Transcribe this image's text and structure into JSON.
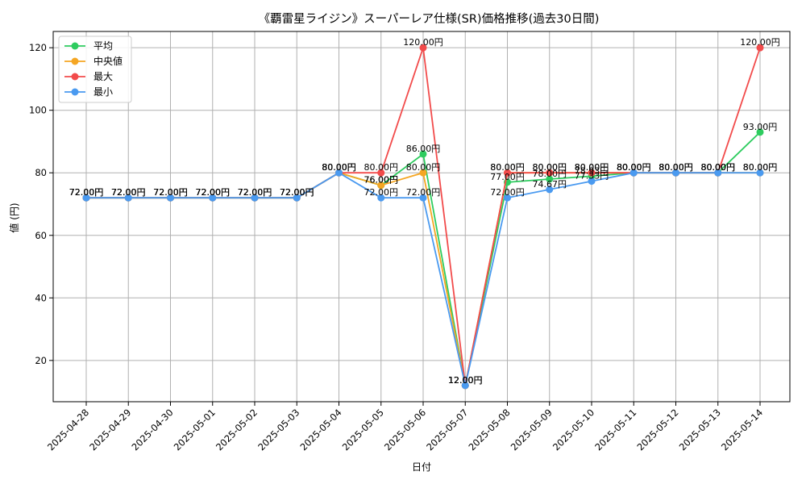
{
  "chart_data": {
    "type": "line",
    "title": "《覇雷星ライジン》スーパーレア仕様(SR)価格推移(過去30日間)",
    "xlabel": "日付",
    "ylabel": "値 (円)",
    "ylim": [
      6.8,
      125.2
    ],
    "yticks": [
      20,
      40,
      60,
      80,
      100,
      120
    ],
    "grid": true,
    "legend_position": "top-left",
    "categories": [
      "2025-04-28",
      "2025-04-29",
      "2025-04-30",
      "2025-05-01",
      "2025-05-02",
      "2025-05-03",
      "2025-05-04",
      "2025-05-05",
      "2025-05-06",
      "2025-05-07",
      "2025-05-08",
      "2025-05-09",
      "2025-05-10",
      "2025-05-11",
      "2025-05-12",
      "2025-05-13",
      "2025-05-14"
    ],
    "series": [
      {
        "name": "平均",
        "color": "#2ecc5f",
        "values": [
          72,
          72,
          72,
          72,
          72,
          72,
          80,
          76,
          86,
          12,
          77,
          78,
          78.93,
          80,
          80,
          80,
          93
        ],
        "labels": [
          "72.00円",
          "72.00円",
          "72.00円",
          "72.00円",
          "72.00円",
          "72.00円",
          "80.00円",
          "76.00円",
          "86.00円",
          "12.00円",
          "77.00円",
          "78.00円",
          "78.93円",
          "80.00円",
          "80.00円",
          "80.00円",
          "93.00円"
        ]
      },
      {
        "name": "中央値",
        "color": "#f5a623",
        "values": [
          72,
          72,
          72,
          72,
          72,
          72,
          80,
          76,
          80,
          12,
          80,
          80,
          80,
          80,
          80,
          80,
          80
        ],
        "labels": [
          "72.00円",
          "72.00円",
          "72.00円",
          "72.00円",
          "72.00円",
          "72.00円",
          "80.00円",
          "76.00円",
          "80.00円",
          "12.00円",
          "80.00円",
          "80.00円",
          "80.00円",
          "80.00円",
          "80.00円",
          "80.00円",
          "80.00円"
        ]
      },
      {
        "name": "最大",
        "color": "#f24b4b",
        "values": [
          72,
          72,
          72,
          72,
          72,
          72,
          80,
          80,
          120,
          12,
          80,
          80,
          80,
          80,
          80,
          80,
          120
        ],
        "labels": [
          "72.00円",
          "72.00円",
          "72.00円",
          "72.00円",
          "72.00円",
          "72.00円",
          "80.00円",
          "80.00円",
          "120.00円",
          "12.00円",
          "80.00円",
          "80.00円",
          "80.00円",
          "80.00円",
          "80.00円",
          "80.00円",
          "120.00円"
        ]
      },
      {
        "name": "最小",
        "color": "#4a9af0",
        "values": [
          72,
          72,
          72,
          72,
          72,
          72,
          80,
          72,
          72,
          12,
          72,
          74.67,
          77.33,
          80,
          80,
          80,
          80
        ],
        "labels": [
          "72.00円",
          "72.00円",
          "72.00円",
          "72.00円",
          "72.00円",
          "72.00円",
          "80.00円",
          "72.00円",
          "72.00円",
          "12.00円",
          "72.00円",
          "74.67円",
          "77.33円",
          "80.00円",
          "80.00円",
          "80.00円",
          "80.00円"
        ]
      }
    ]
  }
}
